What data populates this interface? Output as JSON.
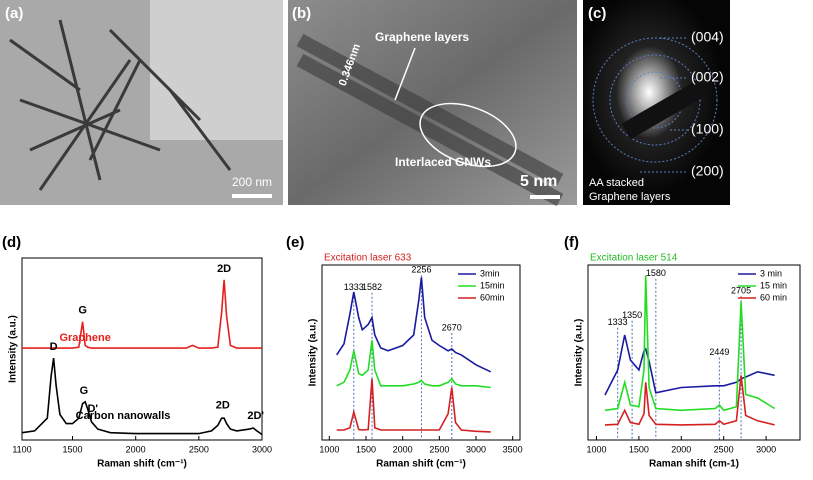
{
  "images": {
    "a": {
      "panel": "(a)",
      "scale": "200 nm"
    },
    "b": {
      "panel": "(b)",
      "label": "Graphene layers",
      "spacing": "0.346nm",
      "region": "Interlaced GNWs",
      "scale": "5 nm"
    },
    "c": {
      "panel": "(c)",
      "rings": [
        "(004)",
        "(002)",
        "(100)",
        "(200)"
      ],
      "caption": [
        "AA stacked",
        "Graphene layers"
      ]
    }
  },
  "chart_data": [
    {
      "type": "line",
      "panel": "(d)",
      "xlabel": "Raman shift (cm⁻¹)",
      "ylabel": "Intensity (a.u.)",
      "xlim": [
        1100,
        3000
      ],
      "xticks": [
        1100,
        1500,
        2000,
        2500,
        3000
      ],
      "ylim": [
        0,
        100
      ],
      "x": [
        1100,
        1200,
        1300,
        1330,
        1350,
        1370,
        1400,
        1450,
        1500,
        1550,
        1580,
        1600,
        1620,
        1650,
        1700,
        1800,
        2000,
        2200,
        2400,
        2450,
        2500,
        2600,
        2650,
        2680,
        2700,
        2720,
        2750,
        2800,
        2900,
        2930,
        2960,
        3000
      ],
      "series": [
        {
          "name": "Graphene",
          "color": "#e8201c",
          "label_at": [
            1600,
            56
          ],
          "values": [
            50.5,
            50.5,
            50.5,
            50.5,
            50.5,
            50.5,
            50.5,
            50.5,
            50.5,
            51,
            65,
            52,
            51,
            50.5,
            50.5,
            50.5,
            50.5,
            50.5,
            50.5,
            52,
            50.5,
            50.5,
            51,
            70,
            88,
            68,
            52,
            50.5,
            50.5,
            50.5,
            50.5,
            50.5
          ]
        },
        {
          "name": "Carbon nanowalls",
          "color": "#000000",
          "label_at": [
            1900,
            13
          ],
          "values": [
            4,
            5,
            12,
            35,
            45,
            30,
            14,
            9,
            9,
            12,
            20,
            21,
            17,
            10,
            6,
            4,
            3.5,
            3.5,
            3.5,
            3.5,
            3.5,
            5,
            8,
            12,
            12,
            9,
            6,
            5,
            6,
            6.6,
            5,
            3
          ]
        }
      ],
      "annotations": [
        {
          "text": "2D",
          "x": 2700,
          "y": 94
        },
        {
          "text": "G",
          "x": 1580,
          "y": 71
        },
        {
          "text": "D",
          "x": 1350,
          "y": 51
        },
        {
          "text": "G",
          "x": 1590,
          "y": 27
        },
        {
          "text": "D'",
          "x": 1660,
          "y": 17
        },
        {
          "text": "2D",
          "x": 2690,
          "y": 19
        },
        {
          "text": "2D'",
          "x": 2950,
          "y": 13
        }
      ],
      "dashed": false,
      "legend": null
    },
    {
      "type": "line",
      "panel": "(e)",
      "title": "Excitation laser 633",
      "title_color": "#d42020",
      "xlabel": "Raman shift (cm⁻¹)",
      "ylabel": "Intensity (a.u.)",
      "xlim": [
        900,
        3600
      ],
      "xticks": [
        1000,
        1500,
        2000,
        2500,
        3000,
        3500
      ],
      "ylim": [
        0,
        100
      ],
      "x": [
        1100,
        1200,
        1280,
        1333,
        1400,
        1450,
        1530,
        1582,
        1620,
        1700,
        1800,
        2000,
        2150,
        2220,
        2256,
        2300,
        2400,
        2500,
        2620,
        2670,
        2720,
        2800,
        3000,
        3200
      ],
      "series": [
        {
          "name": "3min",
          "color": "#1a1aa0",
          "values": [
            48.6,
            55,
            72,
            84.6,
            70,
            63,
            66,
            70,
            60,
            52.6,
            51,
            54,
            60,
            80,
            93,
            70,
            57,
            54,
            51,
            52,
            50,
            48.6,
            43,
            39
          ]
        },
        {
          "name": "15min",
          "color": "#22dd22",
          "values": [
            31,
            33,
            40,
            51,
            38,
            37,
            40,
            57,
            40,
            31,
            31,
            31,
            32,
            33,
            34,
            32,
            31,
            31,
            33,
            35,
            32,
            31,
            31,
            30
          ]
        },
        {
          "name": "60min",
          "color": "#d42020",
          "values": [
            5.7,
            5.7,
            7,
            16,
            6,
            5.7,
            6,
            35,
            7,
            5.7,
            5.7,
            5.7,
            5.7,
            5.7,
            5.7,
            5.7,
            5.7,
            5.7,
            15,
            30,
            10,
            5.7,
            5,
            4.6
          ]
        }
      ],
      "annotations": [
        {
          "text": "1333",
          "x": 1333,
          "y": 87
        },
        {
          "text": "1582",
          "x": 1582,
          "y": 87
        },
        {
          "text": "2256",
          "x": 2256,
          "y": 97
        },
        {
          "text": "2670",
          "x": 2670,
          "y": 64
        }
      ],
      "dashed": true,
      "legend": "upper right"
    },
    {
      "type": "line",
      "panel": "(f)",
      "title": "Excitation laser 514",
      "title_color": "#22bb22",
      "xlabel": "Raman shift (cm-1)",
      "ylabel": "Intensity (a.u.)",
      "xlim": [
        900,
        3400
      ],
      "xticks": [
        1000,
        1500,
        2000,
        2500,
        3000
      ],
      "ylim": [
        0,
        100
      ],
      "x": [
        1100,
        1250,
        1333,
        1400,
        1500,
        1560,
        1580,
        1620,
        1700,
        2000,
        2400,
        2449,
        2500,
        2650,
        2705,
        2760,
        2900,
        3100
      ],
      "series": [
        {
          "name": "3 min",
          "color": "#1a1aa0",
          "values": [
            25.7,
            40,
            60,
            45.7,
            40,
            51,
            52,
            45,
            27,
            30,
            31,
            31,
            31,
            33,
            35,
            36,
            39,
            37
          ]
        },
        {
          "name": "15 min",
          "color": "#22dd22",
          "values": [
            17,
            18,
            33,
            20,
            19,
            40,
            94,
            30,
            18,
            17,
            18,
            20,
            17,
            19,
            79,
            26,
            24,
            18
          ]
        },
        {
          "name": "60 min",
          "color": "#d42020",
          "values": [
            8.6,
            9,
            17,
            10,
            9,
            15,
            33,
            14,
            9,
            8.6,
            9,
            11,
            9,
            11,
            37,
            14,
            11,
            8.6
          ]
        }
      ],
      "annotations": [
        {
          "text": "1333",
          "x": 1250,
          "y": 67
        },
        {
          "text": "1350",
          "x": 1420,
          "y": 71
        },
        {
          "text": "1580",
          "x": 1700,
          "y": 95
        },
        {
          "text": "2449",
          "x": 2449,
          "y": 50
        },
        {
          "text": "2705",
          "x": 2705,
          "y": 85
        }
      ],
      "dashed": true,
      "legend": "upper right"
    }
  ]
}
